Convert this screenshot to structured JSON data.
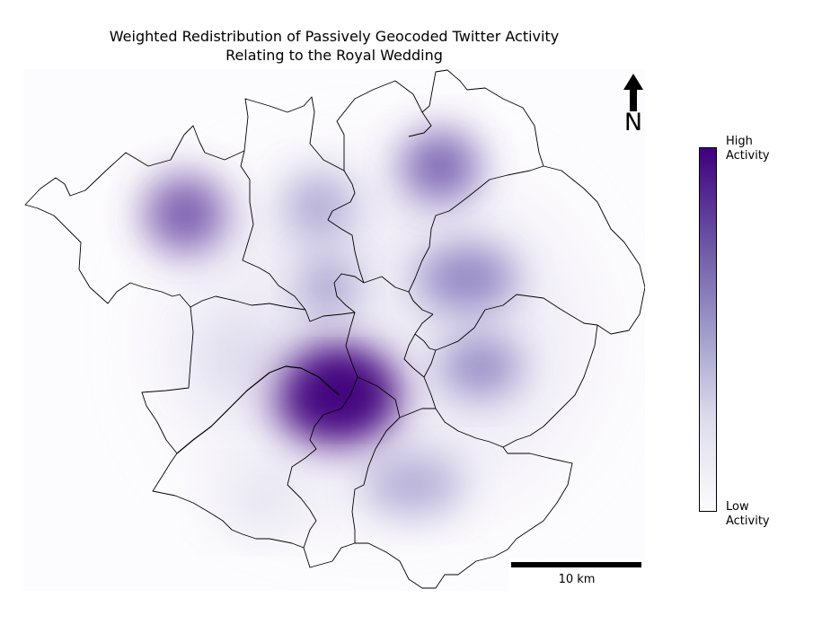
{
  "title": {
    "line1": "Weighted Redistribution of Passively Geocoded Twitter Activity",
    "line2": "Relating to the Royal Wedding"
  },
  "north_arrow": {
    "label": "N"
  },
  "scalebar": {
    "label": "10 km"
  },
  "colorbar": {
    "high_line1": "High",
    "high_line2": "Activity",
    "low_line1": "Low",
    "low_line2": "Activity",
    "color_low": "#fcfbfd",
    "color_high": "#3f007d"
  },
  "map": {
    "type": "heatmap",
    "background_color": "#fcfbfd",
    "hotspots": [
      {
        "name": "west",
        "intensity": 0.75
      },
      {
        "name": "north-central",
        "intensity": 0.45
      },
      {
        "name": "north-east",
        "intensity": 0.7
      },
      {
        "name": "east-upper",
        "intensity": 0.6
      },
      {
        "name": "central",
        "intensity": 0.5
      },
      {
        "name": "centre",
        "intensity": 1.0
      },
      {
        "name": "east-lower",
        "intensity": 0.55
      },
      {
        "name": "south",
        "intensity": 0.4
      },
      {
        "name": "south-west",
        "intensity": 0.2
      },
      {
        "name": "west-central",
        "intensity": 0.25
      }
    ]
  }
}
